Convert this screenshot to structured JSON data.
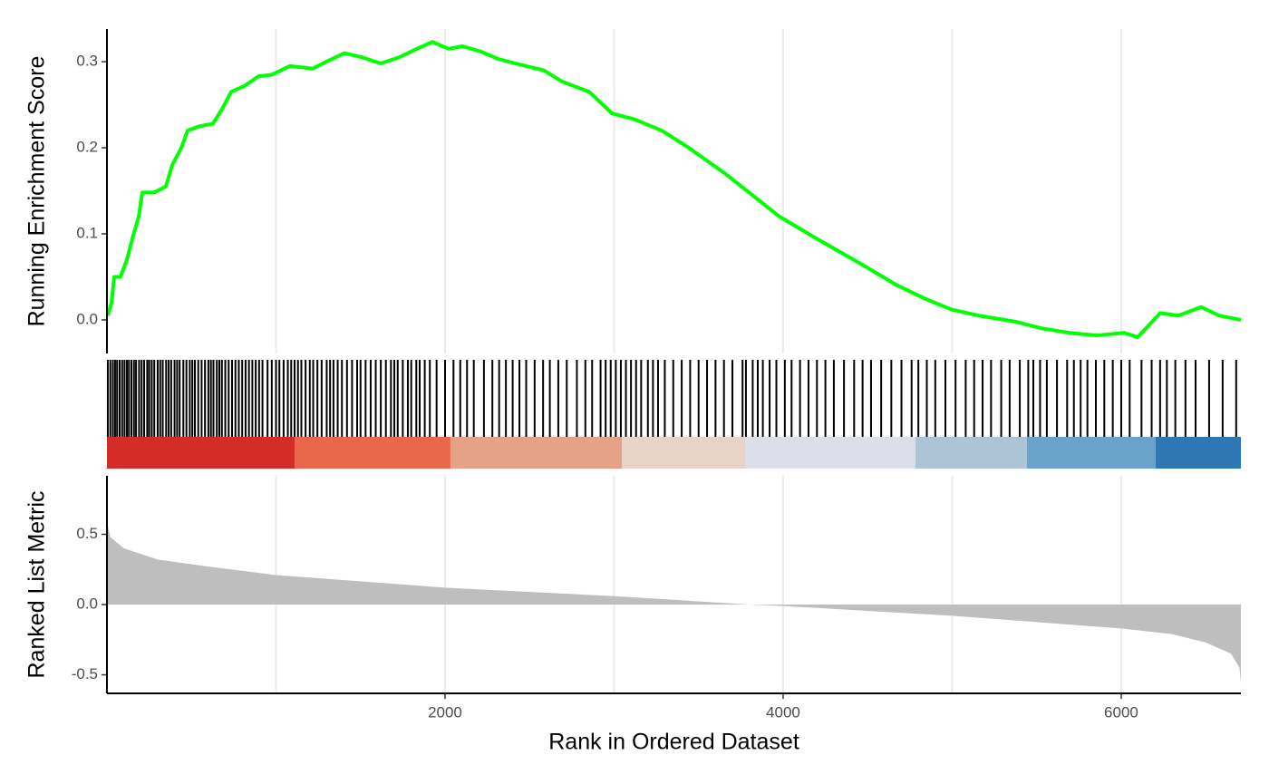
{
  "chart_data": [
    {
      "type": "line",
      "ylabel": "Running Enrichment Score",
      "color": "#00ff00",
      "x": [
        5,
        27,
        43,
        80,
        118,
        155,
        188,
        209,
        279,
        348,
        386,
        440,
        477,
        547,
        627,
        681,
        735,
        815,
        895,
        976,
        1083,
        1217,
        1298,
        1405,
        1512,
        1619,
        1727,
        1834,
        1925,
        2021,
        2102,
        2209,
        2316,
        2477,
        2584,
        2692,
        2853,
        2987,
        3121,
        3282,
        3442,
        3657,
        3818,
        3979,
        4193,
        4461,
        4676,
        4836,
        4997,
        5158,
        5373,
        5534,
        5694,
        5855,
        6016,
        6097,
        6231,
        6338,
        6472,
        6579,
        6708
      ],
      "values": [
        0.005,
        0.02,
        0.05,
        0.05,
        0.07,
        0.098,
        0.12,
        0.148,
        0.148,
        0.155,
        0.18,
        0.2,
        0.22,
        0.225,
        0.228,
        0.245,
        0.265,
        0.272,
        0.283,
        0.285,
        0.295,
        0.292,
        0.3,
        0.31,
        0.305,
        0.298,
        0.305,
        0.315,
        0.323,
        0.315,
        0.318,
        0.312,
        0.303,
        0.295,
        0.29,
        0.277,
        0.265,
        0.24,
        0.233,
        0.22,
        0.2,
        0.17,
        0.145,
        0.12,
        0.095,
        0.065,
        0.04,
        0.025,
        0.012,
        0.005,
        -0.002,
        -0.01,
        -0.015,
        -0.018,
        -0.015,
        -0.02,
        0.008,
        0.005,
        0.015,
        0.005,
        0.0
      ],
      "xlim": [
        0,
        6708
      ],
      "ylim": [
        -0.039,
        0.338
      ],
      "yticks": [
        {
          "value": 0,
          "label": "0.0"
        },
        0.1,
        0.2,
        0.3
      ],
      "xgrid": [
        1000,
        2000,
        3000,
        4000,
        5000,
        6000
      ]
    },
    {
      "type": "rug",
      "color": "#000000",
      "xlim": [
        0,
        6708
      ],
      "x": [
        5,
        20,
        35,
        48,
        60,
        75,
        90,
        104,
        118,
        130,
        145,
        160,
        172,
        190,
        205,
        220,
        238,
        250,
        265,
        280,
        300,
        315,
        330,
        350,
        365,
        380,
        400,
        415,
        430,
        452,
        470,
        490,
        505,
        520,
        540,
        560,
        580,
        600,
        615,
        630,
        650,
        665,
        680,
        700,
        720,
        740,
        760,
        780,
        800,
        820,
        840,
        860,
        880,
        900,
        920,
        950,
        975,
        1000,
        1020,
        1045,
        1070,
        1090,
        1110,
        1130,
        1150,
        1175,
        1200,
        1220,
        1245,
        1270,
        1300,
        1320,
        1340,
        1365,
        1390,
        1420,
        1450,
        1480,
        1500,
        1530,
        1560,
        1590,
        1620,
        1650,
        1680,
        1700,
        1720,
        1750,
        1780,
        1800,
        1830,
        1850,
        1880,
        1910,
        1950,
        2000,
        2050,
        2090,
        2130,
        2170,
        2230,
        2280,
        2320,
        2360,
        2400,
        2440,
        2480,
        2530,
        2580,
        2620,
        2670,
        2720,
        2780,
        2830,
        2870,
        2920,
        2950,
        2980,
        3010,
        3040,
        3070,
        3100,
        3130,
        3160,
        3200,
        3230,
        3260,
        3300,
        3350,
        3400,
        3450,
        3500,
        3550,
        3600,
        3650,
        3700,
        3760,
        3780,
        3820,
        3850,
        3880,
        3920,
        3960,
        4010,
        4050,
        4100,
        4150,
        4200,
        4250,
        4300,
        4360,
        4420,
        4470,
        4520,
        4580,
        4640,
        4700,
        4760,
        4800,
        4850,
        4900,
        4960,
        5020,
        5080,
        5130,
        5180,
        5230,
        5290,
        5340,
        5400,
        5450,
        5480,
        5520,
        5560,
        5620,
        5680,
        5720,
        5760,
        5800,
        5850,
        5900,
        5950,
        6000,
        6050,
        6120,
        6180,
        6230,
        6270,
        6320,
        6380,
        6440,
        6520,
        6600,
        6680
      ],
      "band_edges": [
        0,
        1110,
        2032,
        3046,
        3775,
        4783,
        5442,
        6204,
        6708
      ],
      "band_colors": [
        "#d42d27",
        "#e9674b",
        "#e5a287",
        "#e9d2c7",
        "#dcdeea",
        "#adc4d7",
        "#69a3cc",
        "#2f77b4"
      ]
    },
    {
      "type": "area",
      "ylabel": "Ranked List Metric",
      "xlabel": "Rank in Ordered Dataset",
      "color": "#bebebe",
      "x": [
        1,
        20,
        100,
        300,
        600,
        1000,
        2000,
        3000,
        3800,
        4000,
        5000,
        6000,
        6300,
        6500,
        6650,
        6700,
        6708
      ],
      "values": [
        0.58,
        0.48,
        0.4,
        0.32,
        0.27,
        0.21,
        0.12,
        0.06,
        0.0,
        -0.01,
        -0.08,
        -0.17,
        -0.21,
        -0.27,
        -0.35,
        -0.45,
        -0.56
      ],
      "xlim": [
        0,
        6708
      ],
      "ylim": [
        -0.632,
        0.916
      ],
      "yticks": [
        -0.5,
        {
          "value": 0,
          "label": "0.0"
        },
        0.5
      ],
      "xticks": [
        2000,
        4000,
        6000
      ],
      "xgrid": [
        1000,
        2000,
        3000,
        4000,
        5000,
        6000
      ]
    }
  ]
}
